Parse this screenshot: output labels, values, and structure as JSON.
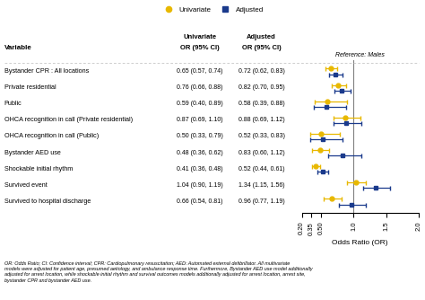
{
  "chart_data": {
    "type": "forest",
    "row_header": "Variable",
    "categories": [
      "Bystander CPR : All locations",
      "Private residential",
      "Public",
      "OHCA recognition in call (Private residential)",
      "OHCA recognition in call (Public)",
      "Bystander AED use",
      "Shockable initial rhythm",
      "Survived event",
      "Survived to hospital discharge"
    ],
    "series": [
      {
        "name": "Univariate",
        "header": [
          "Univariate",
          "OR (95% CI)"
        ],
        "color": "#E8B800",
        "marker": "circle",
        "values": [
          0.65,
          0.76,
          0.59,
          0.87,
          0.5,
          0.48,
          0.41,
          1.04,
          0.66
        ],
        "lower": [
          0.57,
          0.66,
          0.4,
          0.69,
          0.33,
          0.36,
          0.36,
          0.9,
          0.54
        ],
        "upper": [
          0.74,
          0.88,
          0.89,
          1.1,
          0.79,
          0.62,
          0.48,
          1.19,
          0.81
        ],
        "value_labels": [
          "0.65 (0.57, 0.74)",
          "0.76 (0.66, 0.88)",
          "0.59 (0.40, 0.89)",
          "0.87 (0.69, 1.10)",
          "0.50 (0.33, 0.79)",
          "0.48 (0.36, 0.62)",
          "0.41 (0.36, 0.48)",
          "1.04 (0.90, 1.19)",
          "0.66 (0.54, 0.81)"
        ]
      },
      {
        "name": "Adjusted",
        "header": [
          "Adjusted",
          "OR (95% CI)"
        ],
        "color": "#1A3A8C",
        "marker": "square",
        "values": [
          0.72,
          0.82,
          0.58,
          0.88,
          0.52,
          0.83,
          0.52,
          1.34,
          0.96
        ],
        "lower": [
          0.62,
          0.7,
          0.39,
          0.69,
          0.33,
          0.6,
          0.44,
          1.15,
          0.77
        ],
        "upper": [
          0.83,
          0.95,
          0.88,
          1.12,
          0.83,
          1.12,
          0.61,
          1.56,
          1.19
        ],
        "value_labels": [
          "0.72 (0.62, 0.83)",
          "0.82 (0.70, 0.95)",
          "0.58 (0.39, 0.88)",
          "0.88 (0.69, 1.12)",
          "0.52 (0.33, 0.83)",
          "0.83 (0.60, 1.12)",
          "0.52 (0.44, 0.61)",
          "1.34 (1.15, 1.56)",
          "0.96 (0.77, 1.19)"
        ]
      }
    ],
    "xlabel": "Odds Ratio (OR)",
    "xlim": [
      0.2,
      2.0
    ],
    "xticks": [
      {
        "value": 0.2,
        "label": "0.20"
      },
      0.35,
      {
        "value": 0.5,
        "label": "0.50"
      },
      {
        "value": 1.0,
        "label": "1.0"
      },
      1.5,
      {
        "value": 2.0,
        "label": "2.0"
      }
    ],
    "reference_line": 1.0,
    "reference_label": "Reference: Males",
    "legend": "upper center",
    "footnote": "OR: Odds Ratio; CI: Confidence interval; CPR: Cardiopulmonary resuscitation; AED: Automated external defibrillator. All multivariate\nmodels were adjusted for patient age, presumed aetiology, and ambulance response time. Furthermore, Bystander AED use model additionally\nadjusted for arrest location, while shockable initial rhythm and survival outcomes models additionally adjusted for arrest location, arrest site,\nbystander CPR and bystander AED use."
  }
}
